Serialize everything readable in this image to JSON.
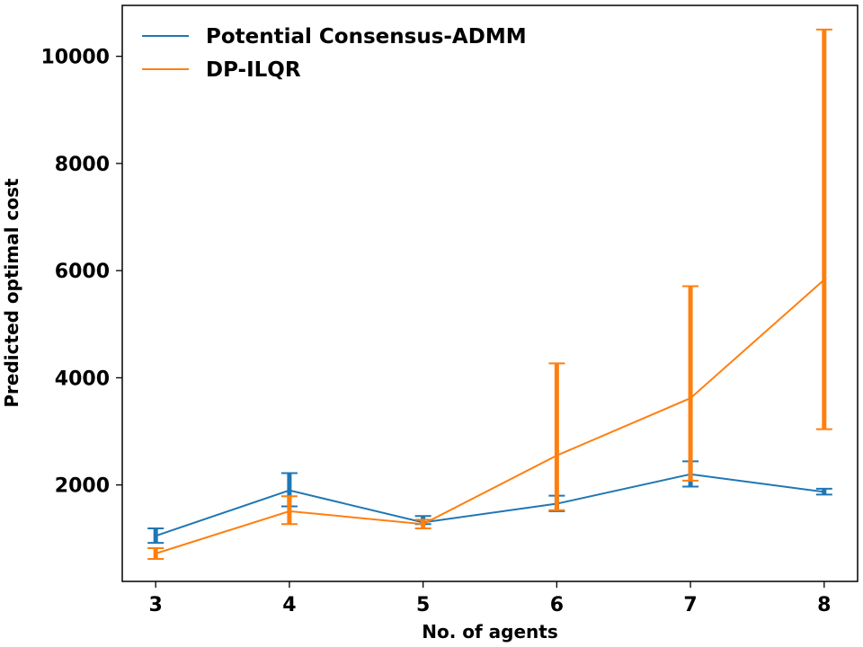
{
  "chart_data": {
    "type": "line",
    "xlabel": "No. of agents",
    "ylabel": "Predicted optimal cost",
    "x": [
      3,
      4,
      5,
      6,
      7,
      8
    ],
    "xlim": [
      2.75,
      8.25
    ],
    "ylim": [
      200,
      10950
    ],
    "x_ticks": [
      3,
      4,
      5,
      6,
      7,
      8
    ],
    "y_ticks": [
      2000,
      4000,
      6000,
      8000,
      10000
    ],
    "grid": false,
    "legend_position": "top-left",
    "series": [
      {
        "name": "Potential Consensus-ADMM",
        "color": "#1f77b4",
        "values": [
          1050,
          1900,
          1300,
          1650,
          2200,
          1870
        ],
        "error_low": [
          920,
          1600,
          1270,
          1510,
          1970,
          1820
        ],
        "error_high": [
          1190,
          2220,
          1420,
          1800,
          2440,
          1930
        ]
      },
      {
        "name": "DP-ILQR",
        "color": "#ff7f0e",
        "values": [
          720,
          1510,
          1270,
          2550,
          3620,
          5830
        ],
        "error_low": [
          620,
          1270,
          1190,
          1530,
          2080,
          3040
        ],
        "error_high": [
          820,
          1790,
          1350,
          4270,
          5710,
          10500
        ]
      }
    ]
  }
}
